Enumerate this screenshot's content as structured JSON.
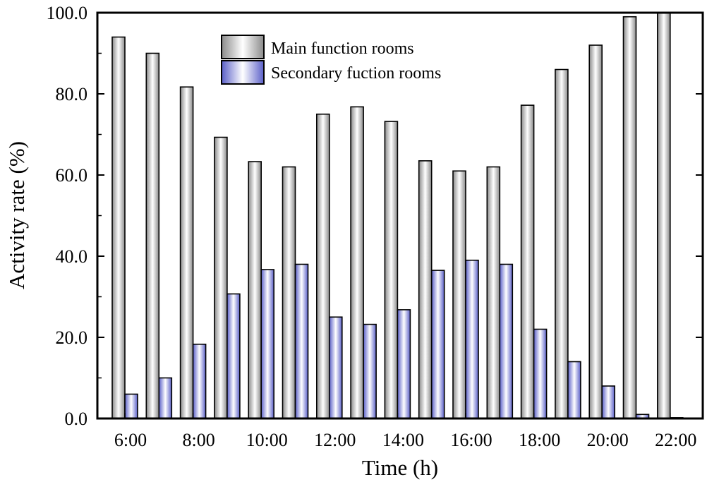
{
  "chart_data": {
    "type": "bar",
    "categories": [
      "6:00",
      "7:00",
      "8:00",
      "9:00",
      "10:00",
      "11:00",
      "12:00",
      "13:00",
      "14:00",
      "15:00",
      "16:00",
      "17:00",
      "18:00",
      "19:00",
      "20:00",
      "21:00",
      "22:00"
    ],
    "series": [
      {
        "name": "Main function rooms",
        "values": [
          94.0,
          90.0,
          81.7,
          69.3,
          63.3,
          62.0,
          75.0,
          76.8,
          73.2,
          63.5,
          61.0,
          62.0,
          77.2,
          86.0,
          92.0,
          99.0,
          100.0
        ]
      },
      {
        "name": "Secondary fuction rooms",
        "values": [
          6.0,
          10.0,
          18.3,
          30.7,
          36.7,
          38.0,
          25.0,
          23.2,
          26.8,
          36.5,
          39.0,
          38.0,
          22.0,
          14.0,
          8.0,
          1.0,
          0.2
        ]
      }
    ],
    "xtick_labels": [
      "6:00",
      "8:00",
      "10:00",
      "12:00",
      "14:00",
      "16:00",
      "18:00",
      "20:00",
      "22:00"
    ],
    "ytick_labels": [
      "0.0",
      "20.0",
      "40.0",
      "60.0",
      "80.0",
      "100.0"
    ],
    "xlabel": "Time (h)",
    "ylabel": "Activity rate (%)",
    "ylim": [
      0,
      100
    ],
    "grid": false,
    "legend": "top-center",
    "colors": {
      "main": "#d9d9d9",
      "secondary": "#8f91d8"
    }
  }
}
